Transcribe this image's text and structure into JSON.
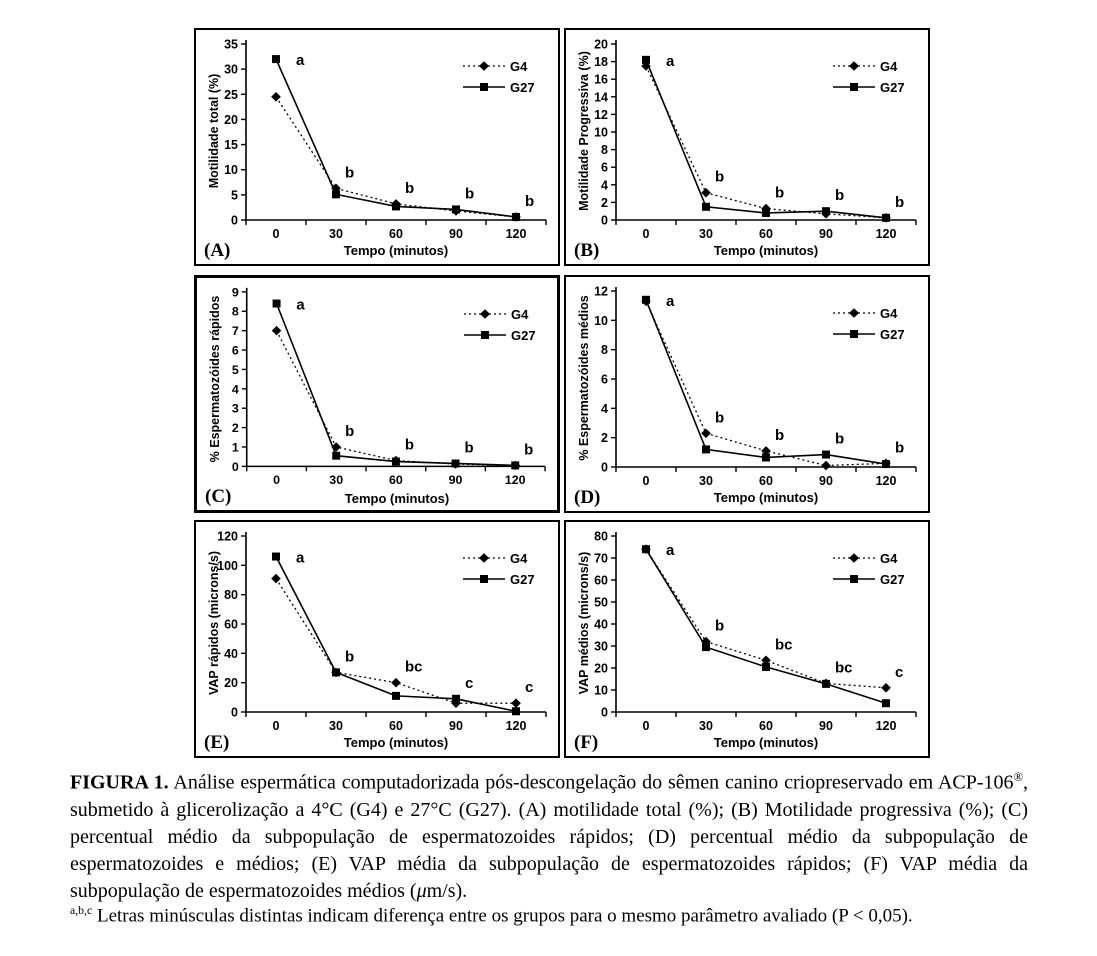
{
  "caption": {
    "label": "FIGURA 1.",
    "part1": " Análise espermática computadorizada pós-descongelação do sêmen canino criopreservado em ACP-106",
    "registered": "®",
    "part2": ", submetido à glicerolização a 4°C (G4) e 27°C (G27). (A) motilidade total (%); (B) Motilidade progressiva (%); (C) percentual médio da subpopulação de espermatozoides rápidos; (D) percentual médio da subpopulação de espermatozoides e médios; (E) VAP média da subpopulação de espermatozoides rápidos; (F) VAP média da subpopulação de espermatozoides médios (",
    "mu": "μ",
    "part3": "m/s).",
    "footnote_sup": "a,b,c",
    "footnote_text": " Letras minúsculas distintas indicam diferença entre os grupos para o mesmo parâmetro avaliado (P < 0,05)."
  },
  "chart_data": [
    {
      "panel": "(A)",
      "type": "line",
      "xlabel": "Tempo (minutos)",
      "ylabel": "Motilidade total (%)",
      "categories": [
        0,
        30,
        60,
        90,
        120
      ],
      "ylim": [
        0,
        35
      ],
      "ytick_step": 5,
      "grid": false,
      "legend_position": "top-right",
      "series": [
        {
          "name": "G4",
          "style": "dotted-diamond",
          "values": [
            24.5,
            6.3,
            3.2,
            1.8,
            0.6
          ]
        },
        {
          "name": "G27",
          "style": "solid-square",
          "values": [
            32.0,
            5.1,
            2.7,
            2.1,
            0.6
          ]
        }
      ],
      "annotations": [
        "a",
        "b",
        "b",
        "b",
        "b"
      ]
    },
    {
      "panel": "(B)",
      "type": "line",
      "xlabel": "Tempo (minutos)",
      "ylabel": "Motilidade Progressiva (%)",
      "categories": [
        0,
        30,
        60,
        90,
        120
      ],
      "ylim": [
        0,
        20
      ],
      "ytick_step": 2,
      "grid": false,
      "legend_position": "top-right",
      "series": [
        {
          "name": "G4",
          "style": "dotted-diamond",
          "values": [
            17.5,
            3.1,
            1.3,
            0.7,
            0.25
          ]
        },
        {
          "name": "G27",
          "style": "solid-square",
          "values": [
            18.2,
            1.5,
            0.8,
            1.0,
            0.25
          ]
        }
      ],
      "annotations": [
        "a",
        "b",
        "b",
        "b",
        "b"
      ]
    },
    {
      "panel": "(C)",
      "type": "line",
      "xlabel": "Tempo (minutos)",
      "ylabel": "% Espermatozóides rápidos",
      "categories": [
        0,
        30,
        60,
        90,
        120
      ],
      "ylim": [
        0,
        9
      ],
      "ytick_step": 1,
      "grid": false,
      "legend_position": "top-right",
      "series": [
        {
          "name": "G4",
          "style": "dotted-diamond",
          "values": [
            7.0,
            1.0,
            0.3,
            0.12,
            0.05
          ]
        },
        {
          "name": "G27",
          "style": "solid-square",
          "values": [
            8.4,
            0.55,
            0.25,
            0.15,
            0.05
          ]
        }
      ],
      "annotations": [
        "a",
        "b",
        "b",
        "b",
        "b"
      ]
    },
    {
      "panel": "(D)",
      "type": "line",
      "xlabel": "Tempo (minutos)",
      "ylabel": "% Espermatozóides médios",
      "categories": [
        0,
        30,
        60,
        90,
        120
      ],
      "ylim": [
        0,
        12
      ],
      "ytick_step": 2,
      "grid": false,
      "legend_position": "top-right",
      "series": [
        {
          "name": "G4",
          "style": "dotted-diamond",
          "values": [
            11.3,
            2.3,
            1.1,
            0.1,
            0.25
          ]
        },
        {
          "name": "G27",
          "style": "solid-square",
          "values": [
            11.4,
            1.2,
            0.65,
            0.85,
            0.2
          ]
        }
      ],
      "annotations": [
        "a",
        "b",
        "b",
        "b",
        "b"
      ]
    },
    {
      "panel": "(E)",
      "type": "line",
      "xlabel": "Tempo (minutos)",
      "ylabel": "VAP rápidos (microns/s)",
      "categories": [
        0,
        30,
        60,
        90,
        120
      ],
      "ylim": [
        0,
        120
      ],
      "ytick_step": 20,
      "grid": false,
      "legend_position": "top-right",
      "series": [
        {
          "name": "G4",
          "style": "dotted-diamond",
          "values": [
            91,
            27,
            20,
            6,
            6
          ]
        },
        {
          "name": "G27",
          "style": "solid-square",
          "values": [
            106,
            27,
            11,
            9,
            0.5
          ]
        }
      ],
      "annotations": [
        "a",
        "b",
        "bc",
        "c",
        "c"
      ]
    },
    {
      "panel": "(F)",
      "type": "line",
      "xlabel": "Tempo (minutos)",
      "ylabel": "VAP médios (microns/s)",
      "categories": [
        0,
        30,
        60,
        90,
        120
      ],
      "ylim": [
        0,
        80
      ],
      "ytick_step": 10,
      "grid": false,
      "legend_position": "top-right",
      "series": [
        {
          "name": "G4",
          "style": "dotted-diamond",
          "values": [
            74,
            32,
            23.5,
            13,
            11
          ]
        },
        {
          "name": "G27",
          "style": "solid-square",
          "values": [
            74,
            29.5,
            20.5,
            12.8,
            4
          ]
        }
      ],
      "annotations": [
        "a",
        "b",
        "bc",
        "bc",
        "c"
      ]
    }
  ]
}
